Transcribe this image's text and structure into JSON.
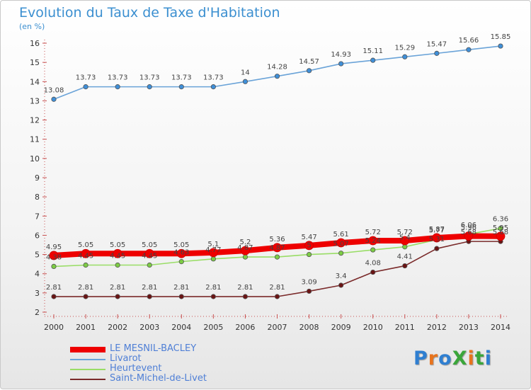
{
  "title": "Evolution du Taux de Taxe d'Habitation",
  "subtitle": "(en %)",
  "brand": "ProXiti",
  "colors": {
    "title": "#3b8fd0",
    "legend_text": "#4f7fd6",
    "brand_letters": [
      "#2f7fd1",
      "#e8741d",
      "#2f7fd1",
      "#3aa63a",
      "#e8741d",
      "#3aa63a",
      "#2f7fd1"
    ]
  },
  "chart_data": {
    "type": "line",
    "x": [
      2000,
      2001,
      2002,
      2003,
      2004,
      2005,
      2006,
      2007,
      2008,
      2009,
      2010,
      2011,
      2012,
      2013,
      2014
    ],
    "ylim": [
      2,
      16
    ],
    "yticks": [
      2,
      3,
      4,
      5,
      6,
      7,
      8,
      9,
      10,
      11,
      12,
      13,
      14,
      15,
      16
    ],
    "grid": false,
    "legend_position": "bottom-left",
    "series": [
      {
        "name": "LE MESNIL-BACLEY",
        "color": "#ee0000",
        "values": [
          4.95,
          5.05,
          5.05,
          5.05,
          5.05,
          5.1,
          5.2,
          5.36,
          5.47,
          5.61,
          5.72,
          5.72,
          5.87,
          5.96,
          5.95
        ],
        "labels": [
          "4.95",
          "5.05",
          "5.05",
          "5.05",
          "5.05",
          "5.1",
          "5.2",
          "5.36",
          "5.47",
          "5.61",
          "5.72",
          "5.72",
          "5.87",
          "5.96",
          "5.95"
        ]
      },
      {
        "name": "Livarot",
        "color": "#6aa3d8",
        "values": [
          13.08,
          13.73,
          13.73,
          13.73,
          13.73,
          13.73,
          14,
          14.28,
          14.57,
          14.93,
          15.11,
          15.29,
          15.47,
          15.66,
          15.85
        ],
        "labels": [
          "13.08",
          "13.73",
          "13.73",
          "13.73",
          "13.73",
          "13.73",
          "14",
          "14.28",
          "14.57",
          "14.93",
          "15.11",
          "15.29",
          "15.47",
          "15.66",
          "15.85"
        ]
      },
      {
        "name": "Heurtevent",
        "color": "#99dd66",
        "values": [
          4.38,
          4.45,
          4.45,
          4.45,
          4.63,
          4.77,
          4.87,
          4.87,
          5.0,
          5.07,
          5.24,
          5.4,
          5.77,
          6.06,
          6.36
        ],
        "labels": [
          "4.38",
          "4.45",
          "4.45",
          "4.45",
          "4.63",
          "4.77",
          "4.87",
          "4.87",
          "5",
          "5.07",
          "5.24",
          "5.4",
          "5.77",
          "6.06",
          "6.36"
        ]
      },
      {
        "name": "Saint-Michel-de-Livet",
        "color": "#7a2a2a",
        "values": [
          2.81,
          2.81,
          2.81,
          2.81,
          2.81,
          2.81,
          2.81,
          2.81,
          3.09,
          3.4,
          4.08,
          4.41,
          5.31,
          5.68,
          5.68
        ],
        "labels": [
          "2.81",
          "2.81",
          "2.81",
          "2.81",
          "2.81",
          "2.81",
          "2.81",
          "2.81",
          "3.09",
          "3.4",
          "4.08",
          "4.41",
          "5.31",
          "5.68",
          "5.68"
        ]
      }
    ]
  }
}
